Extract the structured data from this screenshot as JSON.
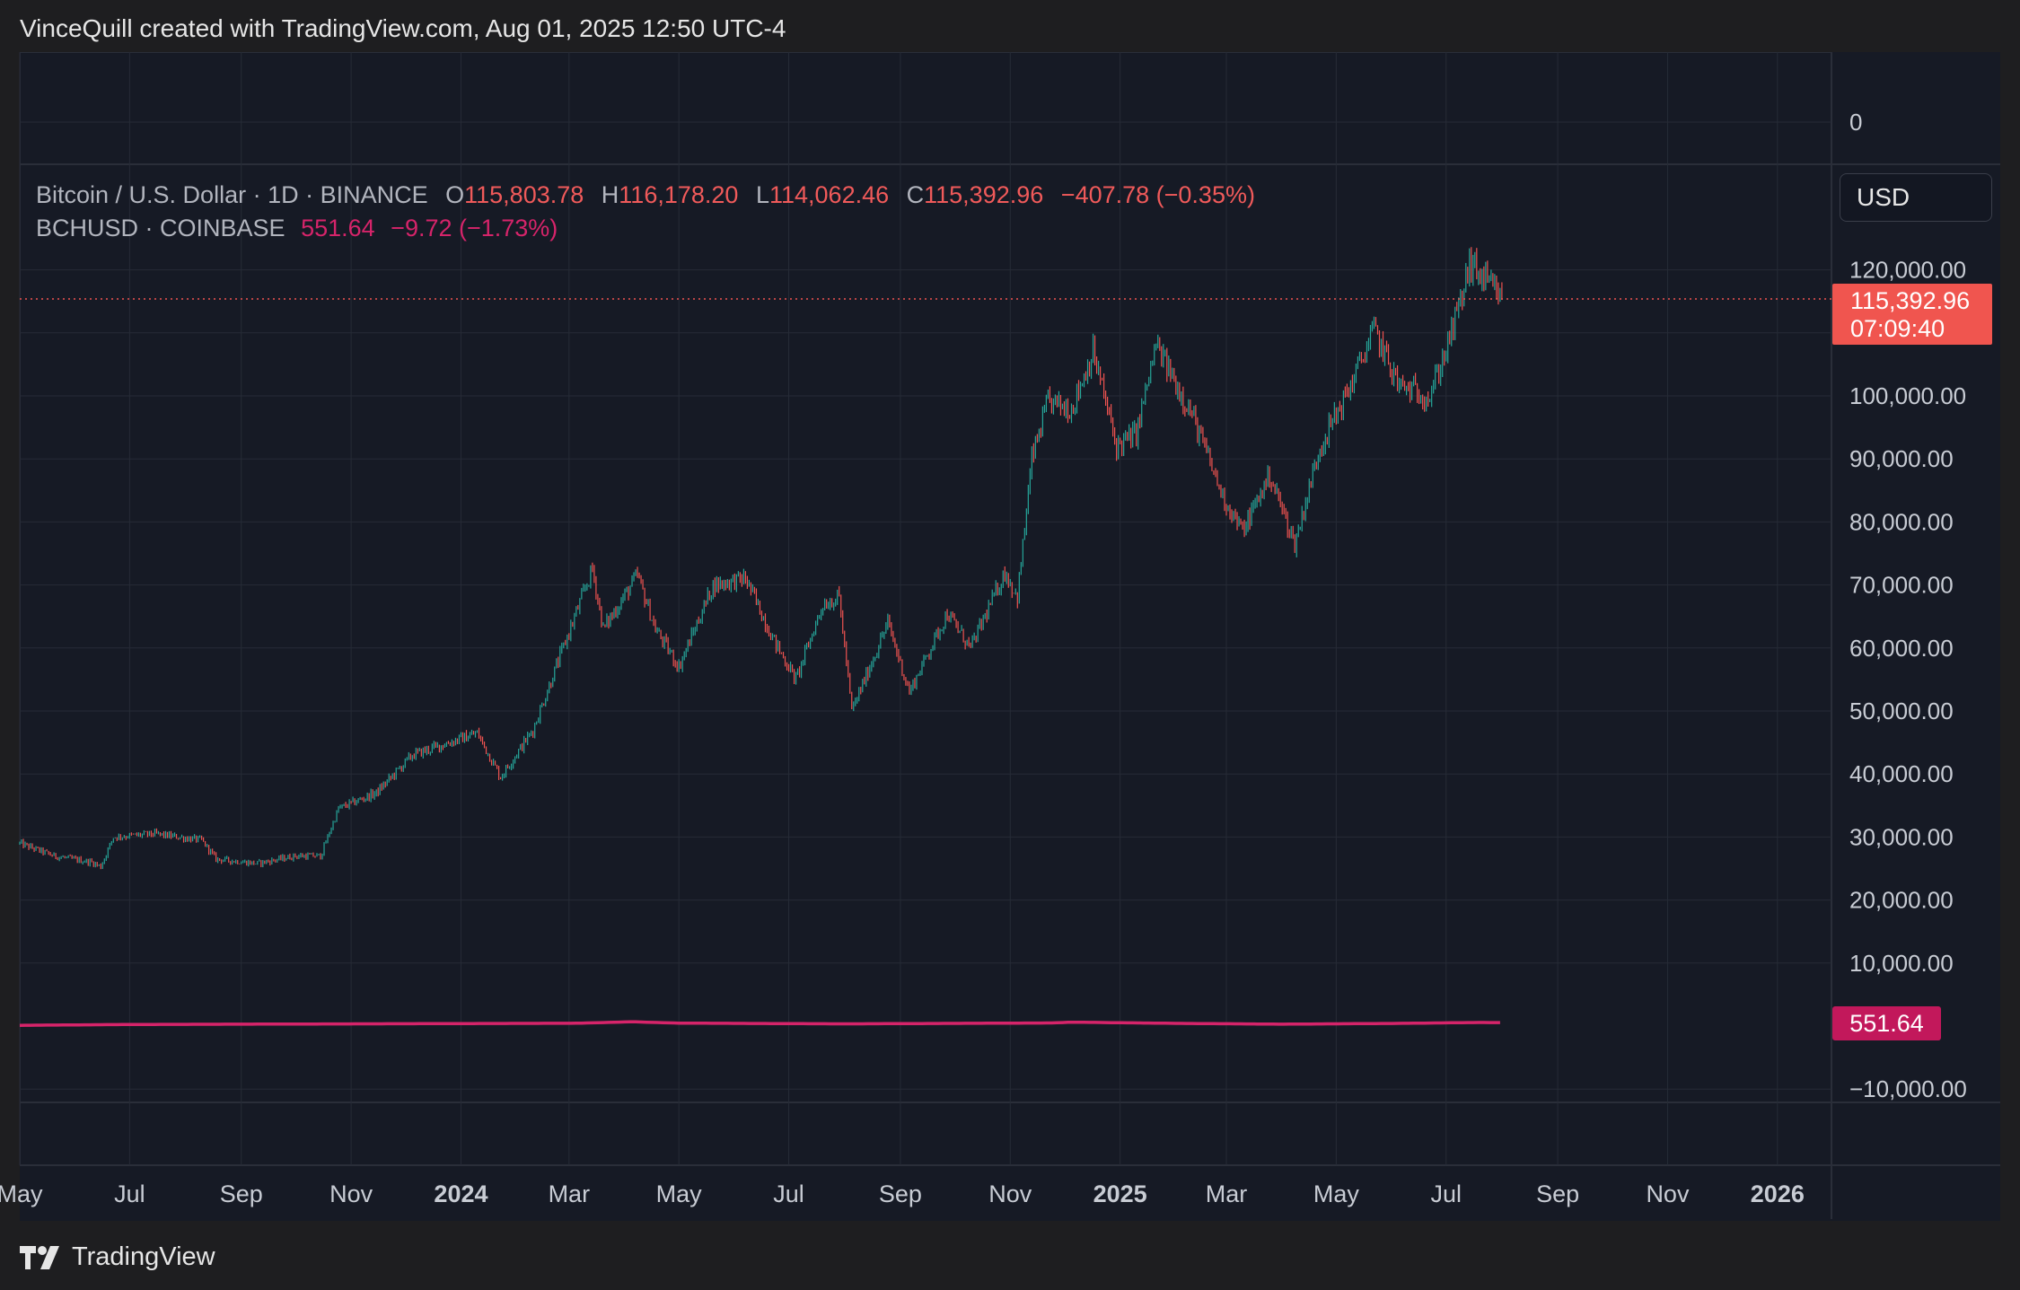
{
  "header": {
    "attribution": "VinceQuill created with TradingView.com, Aug 01, 2025 12:50 UTC-4"
  },
  "legend": {
    "btc": {
      "symbol": "Bitcoin / U.S. Dollar · 1D · BINANCE",
      "o_label": "O",
      "open": "115,803.78",
      "h_label": "H",
      "high": "116,178.20",
      "l_label": "L",
      "low": "114,062.46",
      "c_label": "C",
      "close": "115,392.96",
      "change": "−407.78 (−0.35%)"
    },
    "bch": {
      "symbol": "BCHUSD · COINBASE",
      "price": "551.64",
      "change": "−9.72 (−1.73%)"
    }
  },
  "currency_button": "USD",
  "price_tag": {
    "price": "115,392.96",
    "countdown": "07:09:40"
  },
  "bch_tag": "551.64",
  "footer": {
    "brand": "TradingView"
  },
  "colors": {
    "up": "#26a69a",
    "down": "#ef5350",
    "bch": "#d6246a",
    "background": "#161a25",
    "grid": "#262b36"
  },
  "chart_data": {
    "type": "candlestick",
    "y_axis": {
      "ticks": [
        -10000,
        0,
        10000,
        20000,
        30000,
        40000,
        50000,
        60000,
        70000,
        80000,
        90000,
        100000,
        110000,
        120000
      ],
      "tick_labels": [
        "−10,000.00",
        "0",
        "10,000.00",
        "20,000.00",
        "30,000.00",
        "40,000.00",
        "50,000.00",
        "60,000.00",
        "70,000.00",
        "80,000.00",
        "90,000.00",
        "100,000.00",
        "",
        "120,000.00"
      ],
      "range": [
        -12000,
        137000
      ]
    },
    "x_axis": {
      "labels": [
        "May",
        "Jul",
        "Sep",
        "Nov",
        "2024",
        "Mar",
        "May",
        "Jul",
        "Sep",
        "Nov",
        "2025",
        "Mar",
        "May",
        "Jul",
        "Sep",
        "Nov",
        "2026"
      ],
      "bold": [
        false,
        false,
        false,
        false,
        true,
        false,
        false,
        false,
        false,
        false,
        true,
        false,
        false,
        false,
        false,
        false,
        true
      ],
      "range": [
        "2023-05-01",
        "2026-01-31"
      ]
    },
    "series": [
      {
        "name": "Bitcoin / U.S. Dollar",
        "style": "candles",
        "keypoints": [
          [
            "2023-05-01",
            29000
          ],
          [
            "2023-05-20",
            27000
          ],
          [
            "2023-06-10",
            26000
          ],
          [
            "2023-06-15",
            25300
          ],
          [
            "2023-06-22",
            30000
          ],
          [
            "2023-07-15",
            30500
          ],
          [
            "2023-08-10",
            29500
          ],
          [
            "2023-08-18",
            26500
          ],
          [
            "2023-09-10",
            25800
          ],
          [
            "2023-10-01",
            27000
          ],
          [
            "2023-10-15",
            27000
          ],
          [
            "2023-10-25",
            34500
          ],
          [
            "2023-11-15",
            37000
          ],
          [
            "2023-12-05",
            43000
          ],
          [
            "2024-01-10",
            46500
          ],
          [
            "2024-01-23",
            39500
          ],
          [
            "2024-02-10",
            47000
          ],
          [
            "2024-02-28",
            61000
          ],
          [
            "2024-03-14",
            72500
          ],
          [
            "2024-03-20",
            63000
          ],
          [
            "2024-04-08",
            71500
          ],
          [
            "2024-04-18",
            63000
          ],
          [
            "2024-05-01",
            57000
          ],
          [
            "2024-05-20",
            70000
          ],
          [
            "2024-06-07",
            71000
          ],
          [
            "2024-06-24",
            60500
          ],
          [
            "2024-07-05",
            55000
          ],
          [
            "2024-07-20",
            67000
          ],
          [
            "2024-07-29",
            68000
          ],
          [
            "2024-08-05",
            50000
          ],
          [
            "2024-08-25",
            64000
          ],
          [
            "2024-09-06",
            53000
          ],
          [
            "2024-09-27",
            65500
          ],
          [
            "2024-10-10",
            60000
          ],
          [
            "2024-10-29",
            72000
          ],
          [
            "2024-11-05",
            68000
          ],
          [
            "2024-11-13",
            90000
          ],
          [
            "2024-11-22",
            99000
          ],
          [
            "2024-12-05",
            98000
          ],
          [
            "2024-12-17",
            107000
          ],
          [
            "2024-12-30",
            92000
          ],
          [
            "2025-01-10",
            94000
          ],
          [
            "2025-01-21",
            108000
          ],
          [
            "2025-02-10",
            97000
          ],
          [
            "2025-02-27",
            84000
          ],
          [
            "2025-03-10",
            78500
          ],
          [
            "2025-03-25",
            87500
          ],
          [
            "2025-04-08",
            76500
          ],
          [
            "2025-04-22",
            92000
          ],
          [
            "2025-05-08",
            101000
          ],
          [
            "2025-05-22",
            110500
          ],
          [
            "2025-06-05",
            101500
          ],
          [
            "2025-06-22",
            100000
          ],
          [
            "2025-07-03",
            109000
          ],
          [
            "2025-07-11",
            117000
          ],
          [
            "2025-07-14",
            121000
          ],
          [
            "2025-07-25",
            117500
          ],
          [
            "2025-08-01",
            115393
          ]
        ]
      },
      {
        "name": "BCHUSD",
        "style": "line",
        "keypoints": [
          [
            "2023-05-01",
            117
          ],
          [
            "2023-07-01",
            250
          ],
          [
            "2024-03-05",
            450
          ],
          [
            "2024-04-05",
            680
          ],
          [
            "2024-05-01",
            470
          ],
          [
            "2024-08-01",
            350
          ],
          [
            "2024-11-25",
            500
          ],
          [
            "2024-12-05",
            620
          ],
          [
            "2025-02-01",
            430
          ],
          [
            "2025-04-01",
            300
          ],
          [
            "2025-06-01",
            420
          ],
          [
            "2025-07-20",
            570
          ],
          [
            "2025-08-01",
            551.64
          ]
        ]
      }
    ],
    "last_price_line": 115392.96,
    "legend_placement": "top-left",
    "grid": true
  }
}
